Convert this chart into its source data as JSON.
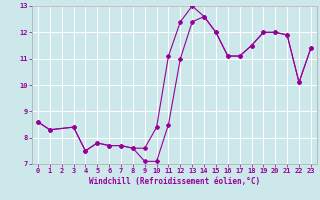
{
  "xlabel": "Windchill (Refroidissement éolien,°C)",
  "xlim": [
    -0.5,
    23.5
  ],
  "ylim": [
    7,
    13
  ],
  "xticks": [
    0,
    1,
    2,
    3,
    4,
    5,
    6,
    7,
    8,
    9,
    10,
    11,
    12,
    13,
    14,
    15,
    16,
    17,
    18,
    19,
    20,
    21,
    22,
    23
  ],
  "yticks": [
    7,
    8,
    9,
    10,
    11,
    12,
    13
  ],
  "bg_color": "#cce8ea",
  "line_color": "#990099",
  "grid_color": "#b8d8da",
  "line1_x": [
    0,
    1,
    3,
    4,
    5,
    6,
    7,
    8,
    9,
    10,
    11,
    12,
    13,
    14,
    15,
    16,
    17,
    18,
    19,
    20,
    21,
    22,
    23
  ],
  "line1_y": [
    8.6,
    8.3,
    8.4,
    7.5,
    7.8,
    7.7,
    7.7,
    7.6,
    7.6,
    8.4,
    11.1,
    12.4,
    13.0,
    12.6,
    12.0,
    11.1,
    11.1,
    11.5,
    12.0,
    12.0,
    11.9,
    10.1,
    11.4
  ],
  "line2_x": [
    0,
    1,
    3,
    4,
    5,
    6,
    7,
    8,
    9,
    10,
    11,
    12,
    13,
    14,
    15,
    16,
    17,
    18,
    19,
    20,
    21,
    22,
    23
  ],
  "line2_y": [
    8.6,
    8.3,
    8.4,
    7.5,
    7.8,
    7.7,
    7.7,
    7.6,
    7.1,
    7.1,
    8.5,
    11.0,
    12.4,
    12.6,
    12.0,
    11.1,
    11.1,
    11.5,
    12.0,
    12.0,
    11.9,
    10.1,
    11.4
  ]
}
